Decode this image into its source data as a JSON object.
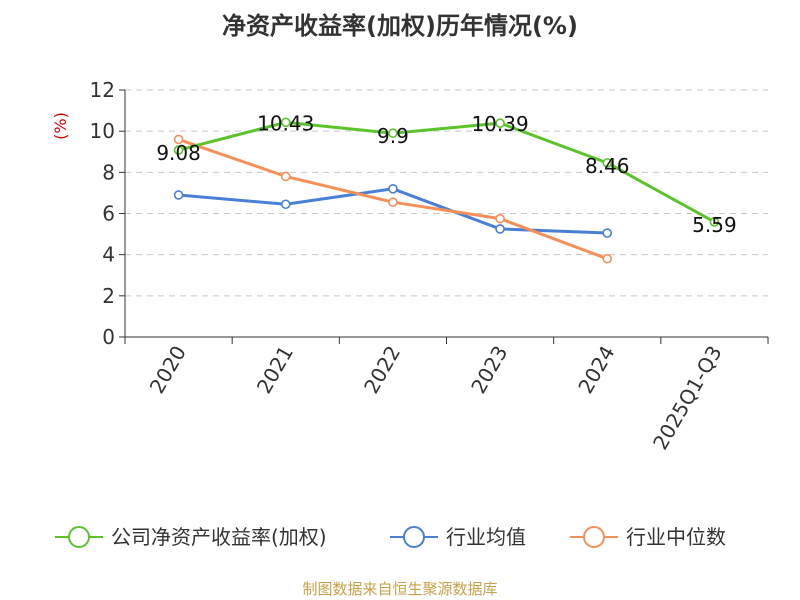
{
  "chart_data": {
    "type": "line",
    "title": "净资产收益率(加权)历年情况(%)",
    "ylabel": "(%)",
    "xlabel": "",
    "ylim": [
      0,
      12
    ],
    "yticks": [
      0,
      2,
      4,
      6,
      8,
      10,
      12
    ],
    "categories": [
      "2020",
      "2021",
      "2022",
      "2023",
      "2024",
      "2025Q1-Q3"
    ],
    "grid": "horizontal dashed",
    "legend_position": "bottom",
    "series": [
      {
        "name": "公司净资产收益率(加权)",
        "color": "#5cc42a",
        "values": [
          9.08,
          10.43,
          9.9,
          10.39,
          8.46,
          5.59
        ],
        "labels": [
          "9.08",
          "10.43",
          "9.9",
          "10.39",
          "8.46",
          "5.59"
        ]
      },
      {
        "name": "行业均值",
        "color": "#4a7fd8",
        "values": [
          6.9,
          6.45,
          7.2,
          5.25,
          5.05,
          null
        ]
      },
      {
        "name": "行业中位数",
        "color": "#f5905a",
        "values": [
          9.6,
          7.8,
          6.55,
          5.75,
          3.8,
          null
        ]
      }
    ]
  },
  "footer": {
    "source": "制图数据来自恒生聚源数据库"
  }
}
